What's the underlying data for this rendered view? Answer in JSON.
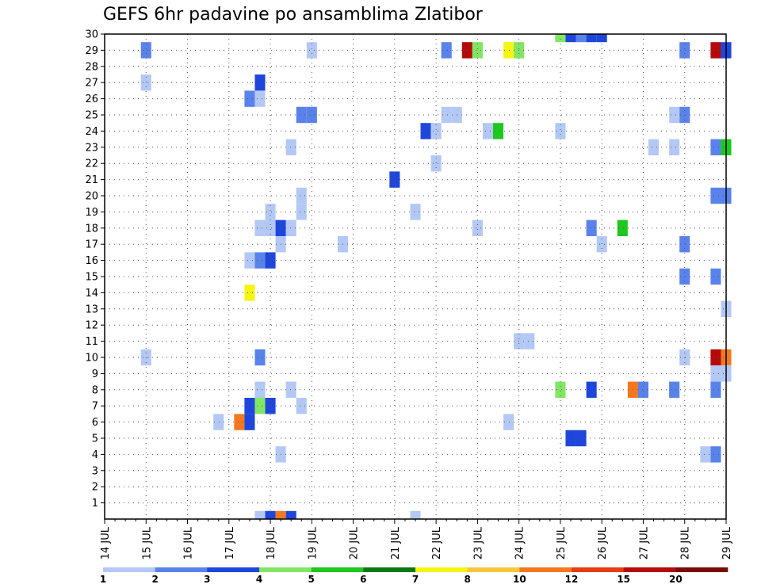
{
  "chart_data": {
    "type": "heatmap",
    "title": "GEFS 6hr padavine po ansamblima Zlatibor",
    "xlabel": "",
    "ylabel": "",
    "x_ticks": [
      "14 JUL",
      "15 JUL",
      "16 JUL",
      "17 JUL",
      "18 JUL",
      "19 JUL",
      "20 JUL",
      "21 JUL",
      "22 JUL",
      "23 JUL",
      "24 JUL",
      "25 JUL",
      "26 JUL",
      "27 JUL",
      "28 JUL",
      "29 JUL"
    ],
    "y_ticks": [
      "1",
      "2",
      "3",
      "4",
      "5",
      "6",
      "7",
      "8",
      "9",
      "10",
      "11",
      "12",
      "13",
      "14",
      "15",
      "16",
      "17",
      "18",
      "19",
      "20",
      "21",
      "22",
      "23",
      "24",
      "25",
      "26",
      "27",
      "28",
      "29",
      "30"
    ],
    "xlim_days": [
      14,
      29
    ],
    "ylim_members": [
      0,
      30
    ],
    "step_hours": 6,
    "grid": true,
    "colorbar": {
      "placement": "bottom",
      "levels": [
        "1",
        "2",
        "3",
        "4",
        "5",
        "6",
        "7",
        "8",
        "10",
        "12",
        "15",
        "20"
      ],
      "colors": [
        "#b4c8f5",
        "#5a82eb",
        "#1e46dc",
        "#82e664",
        "#1ec81e",
        "#0a7814",
        "#f5f514",
        "#f5c83c",
        "#f5781e",
        "#e63c14",
        "#b40a0a",
        "#780a0a"
      ]
    },
    "cells": [
      {
        "day": 15.0,
        "member": 29,
        "bin": 2
      },
      {
        "day": 15.0,
        "member": 27,
        "bin": 1
      },
      {
        "day": 15.0,
        "member": 10,
        "bin": 1
      },
      {
        "day": 19.0,
        "member": 29,
        "bin": 1
      },
      {
        "day": 22.25,
        "member": 29,
        "bin": 2
      },
      {
        "day": 22.75,
        "member": 29,
        "bin": 11
      },
      {
        "day": 23.0,
        "member": 29,
        "bin": 4
      },
      {
        "day": 23.75,
        "member": 29,
        "bin": 7
      },
      {
        "day": 24.0,
        "member": 29,
        "bin": 4
      },
      {
        "day": 25.0,
        "member": 30,
        "bin": 4
      },
      {
        "day": 25.25,
        "member": 30,
        "bin": 3
      },
      {
        "day": 25.5,
        "member": 30,
        "bin": 2
      },
      {
        "day": 25.75,
        "member": 30,
        "bin": 3
      },
      {
        "day": 26.0,
        "member": 30,
        "bin": 3
      },
      {
        "day": 28.0,
        "member": 29,
        "bin": 2
      },
      {
        "day": 28.75,
        "member": 29,
        "bin": 11
      },
      {
        "day": 29.0,
        "member": 29,
        "bin": 3
      },
      {
        "day": 17.75,
        "member": 27,
        "bin": 3
      },
      {
        "day": 17.5,
        "member": 26,
        "bin": 2
      },
      {
        "day": 17.75,
        "member": 26,
        "bin": 1
      },
      {
        "day": 18.75,
        "member": 25,
        "bin": 2
      },
      {
        "day": 19.0,
        "member": 25,
        "bin": 2
      },
      {
        "day": 22.25,
        "member": 25,
        "bin": 1
      },
      {
        "day": 22.5,
        "member": 25,
        "bin": 1
      },
      {
        "day": 27.75,
        "member": 25,
        "bin": 1
      },
      {
        "day": 28.0,
        "member": 25,
        "bin": 2
      },
      {
        "day": 21.75,
        "member": 24,
        "bin": 3
      },
      {
        "day": 22.0,
        "member": 24,
        "bin": 1
      },
      {
        "day": 23.25,
        "member": 24,
        "bin": 1
      },
      {
        "day": 23.5,
        "member": 24,
        "bin": 5
      },
      {
        "day": 25.0,
        "member": 24,
        "bin": 1
      },
      {
        "day": 18.5,
        "member": 23,
        "bin": 1
      },
      {
        "day": 27.25,
        "member": 23,
        "bin": 1
      },
      {
        "day": 27.75,
        "member": 23,
        "bin": 1
      },
      {
        "day": 28.75,
        "member": 23,
        "bin": 2
      },
      {
        "day": 29.0,
        "member": 23,
        "bin": 5
      },
      {
        "day": 22.0,
        "member": 22,
        "bin": 1
      },
      {
        "day": 21.0,
        "member": 21,
        "bin": 3
      },
      {
        "day": 18.75,
        "member": 20,
        "bin": 1
      },
      {
        "day": 28.75,
        "member": 20,
        "bin": 2
      },
      {
        "day": 29.0,
        "member": 20,
        "bin": 2
      },
      {
        "day": 18.0,
        "member": 19,
        "bin": 1
      },
      {
        "day": 18.75,
        "member": 19,
        "bin": 1
      },
      {
        "day": 21.5,
        "member": 19,
        "bin": 1
      },
      {
        "day": 17.75,
        "member": 18,
        "bin": 1
      },
      {
        "day": 18.0,
        "member": 18,
        "bin": 1
      },
      {
        "day": 18.25,
        "member": 18,
        "bin": 3
      },
      {
        "day": 18.5,
        "member": 18,
        "bin": 1
      },
      {
        "day": 23.0,
        "member": 18,
        "bin": 1
      },
      {
        "day": 25.75,
        "member": 18,
        "bin": 2
      },
      {
        "day": 26.5,
        "member": 18,
        "bin": 5
      },
      {
        "day": 18.25,
        "member": 17,
        "bin": 1
      },
      {
        "day": 19.75,
        "member": 17,
        "bin": 1
      },
      {
        "day": 26.0,
        "member": 17,
        "bin": 1
      },
      {
        "day": 28.0,
        "member": 17,
        "bin": 2
      },
      {
        "day": 17.5,
        "member": 16,
        "bin": 1
      },
      {
        "day": 17.75,
        "member": 16,
        "bin": 2
      },
      {
        "day": 18.0,
        "member": 16,
        "bin": 3
      },
      {
        "day": 17.5,
        "member": 14,
        "bin": 7
      },
      {
        "day": 28.0,
        "member": 15,
        "bin": 2
      },
      {
        "day": 28.75,
        "member": 15,
        "bin": 2
      },
      {
        "day": 29.0,
        "member": 13,
        "bin": 1
      },
      {
        "day": 24.0,
        "member": 11,
        "bin": 1
      },
      {
        "day": 24.25,
        "member": 11,
        "bin": 1
      },
      {
        "day": 17.75,
        "member": 10,
        "bin": 2
      },
      {
        "day": 28.0,
        "member": 10,
        "bin": 1
      },
      {
        "day": 28.75,
        "member": 10,
        "bin": 11
      },
      {
        "day": 29.0,
        "member": 10,
        "bin": 9
      },
      {
        "day": 28.75,
        "member": 9,
        "bin": 1
      },
      {
        "day": 29.0,
        "member": 9,
        "bin": 1
      },
      {
        "day": 17.75,
        "member": 8,
        "bin": 1
      },
      {
        "day": 18.5,
        "member": 8,
        "bin": 1
      },
      {
        "day": 25.0,
        "member": 8,
        "bin": 4
      },
      {
        "day": 25.75,
        "member": 8,
        "bin": 3
      },
      {
        "day": 26.75,
        "member": 8,
        "bin": 9
      },
      {
        "day": 27.0,
        "member": 8,
        "bin": 2
      },
      {
        "day": 27.75,
        "member": 8,
        "bin": 2
      },
      {
        "day": 28.75,
        "member": 8,
        "bin": 2
      },
      {
        "day": 17.5,
        "member": 7,
        "bin": 3
      },
      {
        "day": 17.75,
        "member": 7,
        "bin": 4
      },
      {
        "day": 18.0,
        "member": 7,
        "bin": 3
      },
      {
        "day": 18.75,
        "member": 7,
        "bin": 1
      },
      {
        "day": 16.75,
        "member": 6,
        "bin": 1
      },
      {
        "day": 17.25,
        "member": 6,
        "bin": 9
      },
      {
        "day": 17.5,
        "member": 6,
        "bin": 3
      },
      {
        "day": 23.75,
        "member": 6,
        "bin": 1
      },
      {
        "day": 25.25,
        "member": 5,
        "bin": 3
      },
      {
        "day": 25.5,
        "member": 5,
        "bin": 3
      },
      {
        "day": 18.25,
        "member": 4,
        "bin": 1
      },
      {
        "day": 28.5,
        "member": 4,
        "bin": 1
      },
      {
        "day": 28.75,
        "member": 4,
        "bin": 2
      },
      {
        "day": 17.75,
        "member": 0,
        "bin": 1
      },
      {
        "day": 18.0,
        "member": 0,
        "bin": 3
      },
      {
        "day": 18.25,
        "member": 0,
        "bin": 9
      },
      {
        "day": 18.5,
        "member": 0,
        "bin": 3
      },
      {
        "day": 21.5,
        "member": 0,
        "bin": 1
      }
    ]
  }
}
